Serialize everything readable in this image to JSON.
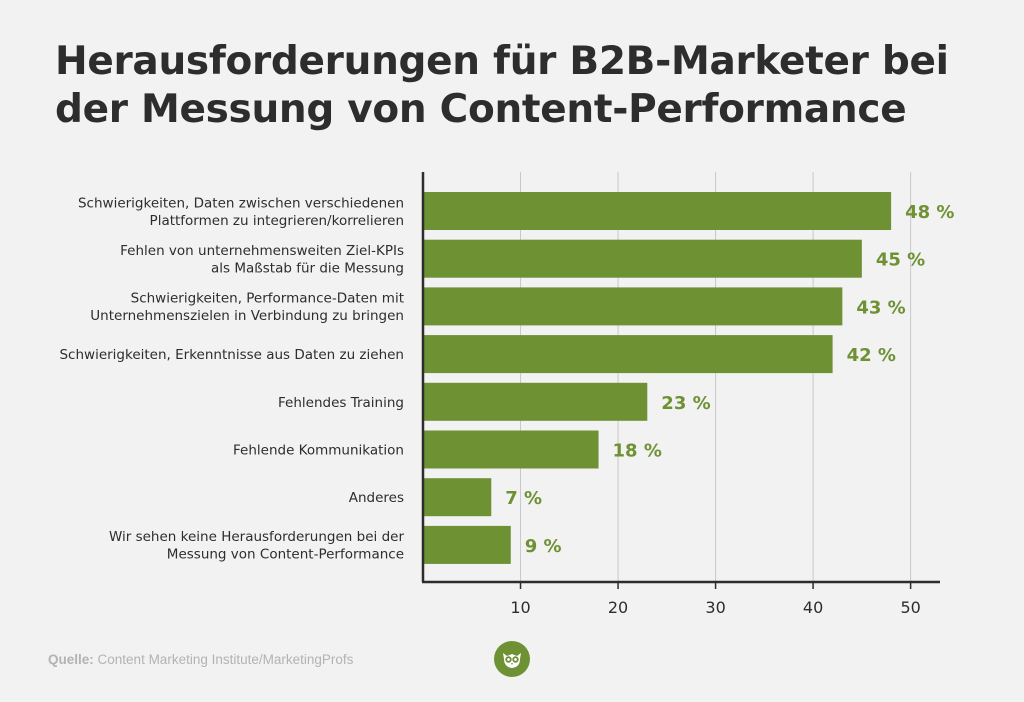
{
  "title": {
    "line1": "Herausforderungen für B2B-Marketer bei",
    "line2": "der Messung von Content-Performance"
  },
  "colors": {
    "bar": "#6e9134",
    "value_label": "#6e9134",
    "text": "#2d2d2d",
    "grid": "#c8c8c8",
    "axis": "#2d2d2d",
    "background": "#f2f2f2"
  },
  "chart_data": {
    "type": "bar",
    "orientation": "horizontal",
    "categories": [
      [
        "Schwierigkeiten, Daten zwischen verschiedenen",
        "Plattformen zu integrieren/korrelieren"
      ],
      [
        "Fehlen von unternehmensweiten Ziel-KPIs",
        "als Maßstab für die Messung"
      ],
      [
        "Schwierigkeiten, Performance-Daten mit",
        "Unternehmenszielen in Verbindung zu bringen"
      ],
      [
        "Schwierigkeiten, Erkenntnisse aus Daten zu ziehen"
      ],
      [
        "Fehlendes Training"
      ],
      [
        "Fehlende Kommunikation"
      ],
      [
        "Anderes"
      ],
      [
        "Wir sehen keine Herausforderungen bei der",
        "Messung von Content-Performance"
      ]
    ],
    "values": [
      48,
      45,
      43,
      42,
      23,
      18,
      7,
      9
    ],
    "value_labels": [
      "48 %",
      "45 %",
      "43 %",
      "42 %",
      "23 %",
      "18 %",
      "7 %",
      "9 %"
    ],
    "xlim": [
      0,
      52.5
    ],
    "xticks": [
      10,
      20,
      30,
      40,
      50
    ],
    "grid": true,
    "legend": "none"
  },
  "source": {
    "label": "Quelle:",
    "text": "Content Marketing Institute/MarketingProfs"
  },
  "logo": {
    "icon": "owl-logo-icon"
  }
}
